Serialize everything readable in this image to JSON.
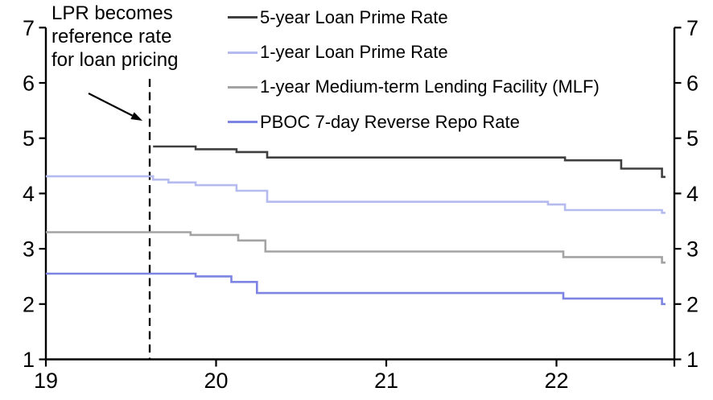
{
  "figure": {
    "background": "#ffffff",
    "axis_color": "#000000",
    "text_color": "#000000"
  },
  "chart_data": {
    "type": "line",
    "step": "after",
    "title": "",
    "xlabel": "",
    "ylabel": "",
    "grid": false,
    "legend_position": "top-center",
    "x_domain": [
      19,
      22.69
    ],
    "y_domain": [
      1,
      7
    ],
    "x_ticks": [
      19,
      20,
      21,
      22
    ],
    "y_ticks": [
      1,
      2,
      3,
      4,
      5,
      6,
      7
    ],
    "y_axis_right_mirrored": true,
    "series": [
      {
        "name": "5-year Loan Prime Rate",
        "color": "#3f3f3f",
        "points": [
          [
            19.63,
            4.85
          ],
          [
            19.88,
            4.8
          ],
          [
            20.12,
            4.75
          ],
          [
            20.3,
            4.65
          ],
          [
            22.05,
            4.6
          ],
          [
            22.38,
            4.45
          ],
          [
            22.62,
            4.3
          ]
        ],
        "x_end": 22.64
      },
      {
        "name": "1-year Loan Prime Rate",
        "color": "#b5bbee",
        "points": [
          [
            19.0,
            4.31
          ],
          [
            19.63,
            4.25
          ],
          [
            19.72,
            4.2
          ],
          [
            19.88,
            4.15
          ],
          [
            20.12,
            4.05
          ],
          [
            20.3,
            3.85
          ],
          [
            21.95,
            3.8
          ],
          [
            22.05,
            3.7
          ],
          [
            22.62,
            3.65
          ]
        ],
        "x_end": 22.64
      },
      {
        "name": "1-year Medium-term Lending Facility (MLF)",
        "color": "#a3a3a3",
        "points": [
          [
            19.0,
            3.3
          ],
          [
            19.85,
            3.25
          ],
          [
            20.13,
            3.15
          ],
          [
            20.29,
            2.95
          ],
          [
            22.04,
            2.85
          ],
          [
            22.62,
            2.75
          ]
        ],
        "x_end": 22.64
      },
      {
        "name": "PBOC 7-day Reverse Repo Rate",
        "color": "#7d84e1",
        "points": [
          [
            19.0,
            2.55
          ],
          [
            19.88,
            2.5
          ],
          [
            20.09,
            2.4
          ],
          [
            20.24,
            2.2
          ],
          [
            22.04,
            2.1
          ],
          [
            22.62,
            2.0
          ]
        ],
        "x_end": 22.64
      }
    ],
    "annotation": {
      "lines": [
        "LPR becomes",
        "reference rate",
        "for loan pricing"
      ],
      "event_x": 19.61
    }
  }
}
